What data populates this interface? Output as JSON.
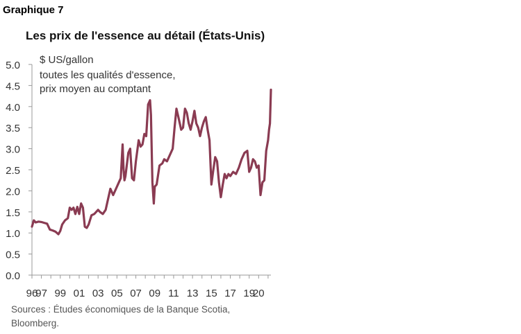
{
  "figure_label": "Graphique 7",
  "source_lines": [
    "Sources : Études économiques de la Banque Scotia,",
    "Bloomberg."
  ],
  "colors": {
    "series": "#8a3b52",
    "axis": "#999999",
    "text": "#333333"
  },
  "chart_data": {
    "type": "line",
    "title": "Les prix de l'essence au détail (États-Unis)",
    "unit_label": "$ US/gallon",
    "notes": [
      "toutes les qualités d'essence,",
      "prix moyen au comptant"
    ],
    "ylim": [
      0,
      5
    ],
    "yticks": [
      "0.0",
      "0.5",
      "1.0",
      "1.5",
      "2.0",
      "2.5",
      "3.0",
      "3.5",
      "4.0",
      "4.5",
      "5.0"
    ],
    "xlim": [
      1996,
      2021.3
    ],
    "xticks": [
      "96",
      "97",
      "99",
      "01",
      "03",
      "05",
      "07",
      "09",
      "11",
      "13",
      "15",
      "17",
      "19",
      "20"
    ],
    "grid": false,
    "legend": "none",
    "x": [
      1996.0,
      1996.2,
      1996.4,
      1996.7,
      1997.0,
      1997.3,
      1997.6,
      1997.9,
      1998.2,
      1998.5,
      1998.8,
      1999.0,
      1999.2,
      1999.5,
      1999.8,
      2000.0,
      2000.2,
      2000.4,
      2000.6,
      2000.8,
      2001.0,
      2001.2,
      2001.4,
      2001.6,
      2001.8,
      2002.0,
      2002.3,
      2002.6,
      2003.0,
      2003.2,
      2003.5,
      2003.8,
      2004.0,
      2004.3,
      2004.6,
      2004.9,
      2005.2,
      2005.4,
      2005.6,
      2005.7,
      2005.8,
      2005.9,
      2006.2,
      2006.4,
      2006.6,
      2006.8,
      2007.0,
      2007.3,
      2007.5,
      2007.7,
      2007.9,
      2008.1,
      2008.3,
      2008.5,
      2008.6,
      2008.75,
      2008.9,
      2009.0,
      2009.2,
      2009.5,
      2009.8,
      2010.0,
      2010.3,
      2010.6,
      2010.9,
      2011.1,
      2011.3,
      2011.5,
      2011.8,
      2012.0,
      2012.2,
      2012.4,
      2012.6,
      2012.8,
      2013.0,
      2013.2,
      2013.4,
      2013.6,
      2013.8,
      2014.0,
      2014.2,
      2014.4,
      2014.6,
      2014.8,
      2015.0,
      2015.2,
      2015.4,
      2015.6,
      2015.8,
      2016.0,
      2016.2,
      2016.4,
      2016.6,
      2016.8,
      2017.0,
      2017.3,
      2017.6,
      2017.9,
      2018.2,
      2018.5,
      2018.8,
      2019.0,
      2019.2,
      2019.4,
      2019.6,
      2019.8,
      2020.0,
      2020.2,
      2020.4,
      2020.6,
      2020.8,
      2021.0,
      2021.1,
      2021.2,
      2021.3
    ],
    "values": [
      1.15,
      1.3,
      1.25,
      1.27,
      1.26,
      1.24,
      1.22,
      1.08,
      1.06,
      1.03,
      0.97,
      1.05,
      1.2,
      1.3,
      1.35,
      1.6,
      1.55,
      1.6,
      1.45,
      1.62,
      1.45,
      1.7,
      1.6,
      1.15,
      1.12,
      1.2,
      1.42,
      1.45,
      1.55,
      1.5,
      1.45,
      1.55,
      1.75,
      2.05,
      1.9,
      2.05,
      2.2,
      2.3,
      3.1,
      2.5,
      2.25,
      2.35,
      2.9,
      3.0,
      2.3,
      2.25,
      2.7,
      3.2,
      3.05,
      3.1,
      3.35,
      3.3,
      4.05,
      4.15,
      3.8,
      2.2,
      1.7,
      2.1,
      2.15,
      2.6,
      2.65,
      2.75,
      2.7,
      2.85,
      3.0,
      3.5,
      3.95,
      3.75,
      3.45,
      3.5,
      3.95,
      3.85,
      3.6,
      3.45,
      3.65,
      3.9,
      3.6,
      3.5,
      3.3,
      3.5,
      3.65,
      3.75,
      3.45,
      3.2,
      2.15,
      2.5,
      2.8,
      2.7,
      2.2,
      1.85,
      2.15,
      2.4,
      2.3,
      2.4,
      2.35,
      2.45,
      2.4,
      2.55,
      2.75,
      2.9,
      2.95,
      2.45,
      2.55,
      2.75,
      2.7,
      2.55,
      2.6,
      1.9,
      2.2,
      2.25,
      2.95,
      3.2,
      3.45,
      3.6,
      4.4
    ]
  }
}
